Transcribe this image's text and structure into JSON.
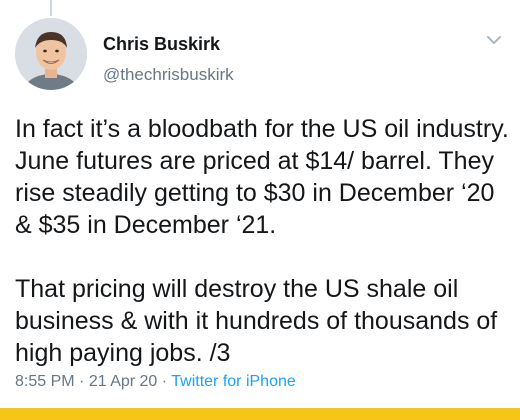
{
  "author": {
    "name": "Chris Buskirk",
    "handle": "@thechrisbuskirk"
  },
  "tweet": {
    "paragraph_1": "In fact it’s a bloodbath for the US oil industry. June futures are priced at $14/ barrel. They rise steadily getting to $30 in December ‘20 & $35 in December ‘21.",
    "paragraph_2": "That pricing will destroy the US shale oil business & with it hundreds of thousands of high paying jobs. /3"
  },
  "meta": {
    "time": "8:55 PM",
    "separator": "·",
    "date": "21 Apr 20",
    "source": "Twitter for iPhone"
  },
  "icons": {
    "menu": "chevron-down-icon",
    "avatar": "avatar"
  },
  "colors": {
    "text": "#14171a",
    "secondary": "#657786",
    "link": "#1da1f2",
    "bottom_bar": "#f5c518"
  }
}
